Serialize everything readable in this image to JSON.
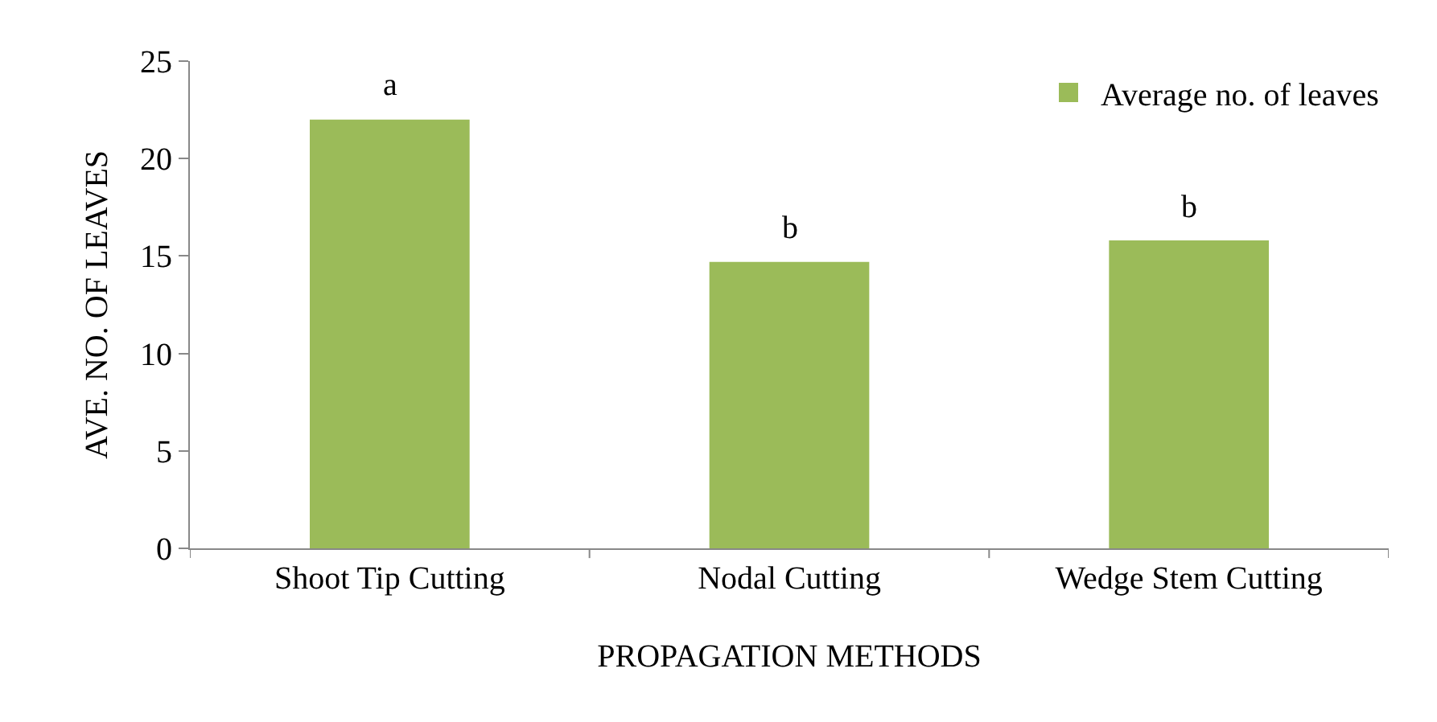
{
  "chart_data": {
    "type": "bar",
    "xlabel": "PROPAGATION METHODS",
    "ylabel": "AVE. NO. OF LEAVES",
    "categories": [
      "Shoot Tip Cutting",
      "Nodal Cutting",
      "Wedge Stem Cutting"
    ],
    "series": [
      {
        "name": "Average no. of leaves",
        "color": "#9bbb59",
        "values": [
          22,
          14.7,
          15.8
        ]
      }
    ],
    "ylim": [
      0,
      25
    ],
    "yticks": [
      0,
      5,
      10,
      15,
      20,
      25
    ],
    "grid": false,
    "legend": "top right",
    "annotations": [
      {
        "text": "a",
        "x": "Shoot Tip Cutting",
        "y": 22
      },
      {
        "text": "b",
        "x": "Nodal Cutting",
        "y": 14.7
      },
      {
        "text": "b",
        "x": "Wedge Stem Cutting",
        "y": 15.8
      }
    ]
  }
}
